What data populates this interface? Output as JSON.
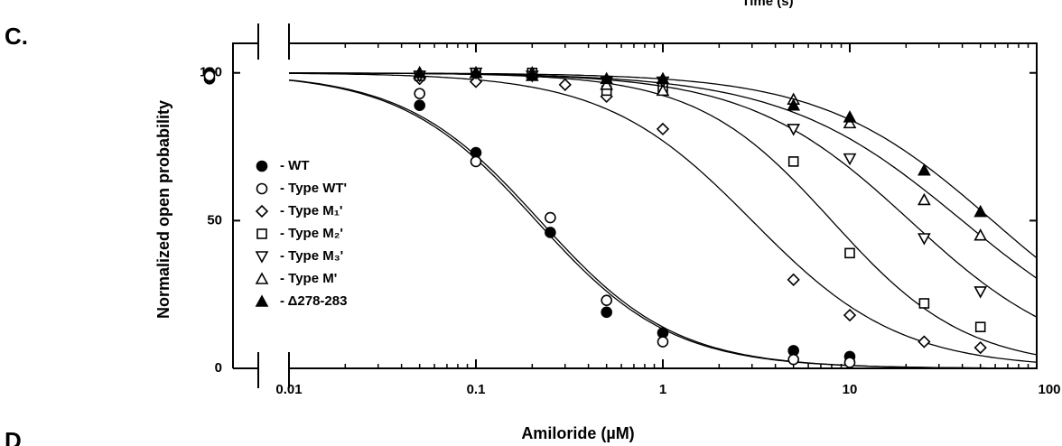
{
  "chart_data": {
    "type": "scatter",
    "panel_label": "C.",
    "next_panel_label": "D",
    "clipped_header": "Time (s)",
    "xlabel": "Amiloride  (µM)",
    "ylabel": "Normalized open probability",
    "xscale": "log",
    "xlim": [
      0.01,
      100
    ],
    "xticks": [
      0.01,
      0.1,
      1,
      10,
      100
    ],
    "ylim": [
      0,
      110
    ],
    "yticks": [
      0,
      50,
      100
    ],
    "color": "#000000",
    "series": [
      {
        "name": "- WT",
        "marker": "circle-filled",
        "control": [
          100,
          98
        ],
        "x": [
          0.05,
          0.1,
          0.25,
          0.5,
          1,
          5,
          10
        ],
        "values": [
          89,
          73,
          46,
          19,
          12,
          6,
          4
        ],
        "ic50": 0.21,
        "hill": 1.2
      },
      {
        "name": "- Type WT'",
        "marker": "circle-open",
        "control": [
          99
        ],
        "x": [
          0.05,
          0.1,
          0.25,
          0.5,
          1,
          5,
          10
        ],
        "values": [
          93,
          70,
          51,
          23,
          9,
          3,
          2
        ],
        "ic50": 0.22,
        "hill": 1.2
      },
      {
        "name": "- Type M₁'",
        "marker": "diamond-open",
        "x": [
          0.05,
          0.1,
          0.3,
          0.5,
          1,
          5,
          10,
          25,
          50
        ],
        "values": [
          98,
          97,
          96,
          92,
          81,
          30,
          18,
          9,
          7
        ],
        "ic50": 3.0,
        "hill": 1.1
      },
      {
        "name": "- Type M₂'",
        "marker": "square-open",
        "x": [
          0.05,
          0.1,
          0.2,
          0.5,
          1,
          5,
          10,
          25,
          50
        ],
        "values": [
          99,
          100,
          100,
          94,
          95,
          70,
          39,
          22,
          14
        ],
        "ic50": 8,
        "hill": 1.2
      },
      {
        "name": "- Type M₃'",
        "marker": "triangle-down-open",
        "x": [
          0.05,
          0.1,
          0.2,
          0.5,
          1,
          5,
          10,
          25,
          50
        ],
        "values": [
          99,
          100,
          99,
          97,
          97,
          81,
          71,
          44,
          26
        ],
        "ic50": 21,
        "hill": 1.0
      },
      {
        "name": "- Type M'",
        "marker": "triangle-up-open",
        "x": [
          0.05,
          0.1,
          0.2,
          0.5,
          1,
          5,
          10,
          25,
          50
        ],
        "values": [
          100,
          100,
          100,
          96,
          94,
          91,
          83,
          57,
          45
        ],
        "ic50": 40,
        "hill": 0.9
      },
      {
        "name": "- Δ278-283",
        "marker": "triangle-up-filled",
        "x": [
          0.05,
          0.1,
          0.2,
          0.5,
          1,
          5,
          10,
          25,
          50
        ],
        "values": [
          100,
          100,
          99,
          98,
          98,
          89,
          85,
          67,
          53
        ],
        "ic50": 58,
        "hill": 0.95
      }
    ]
  }
}
